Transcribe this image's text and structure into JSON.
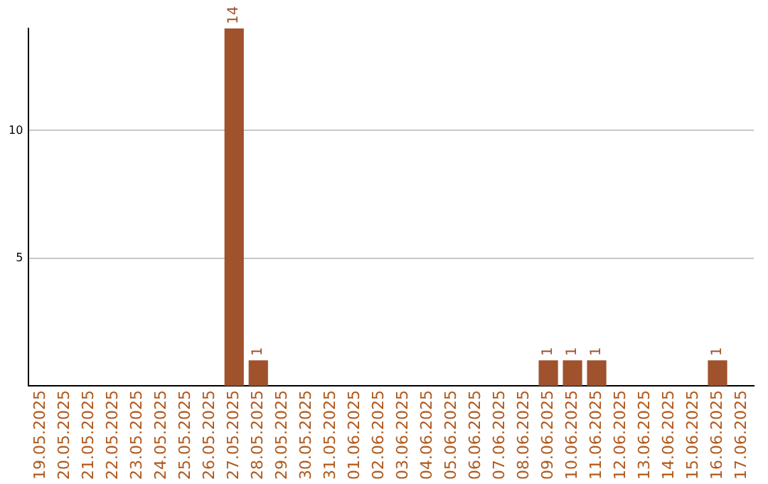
{
  "chart_data": {
    "type": "bar",
    "categories": [
      "19.05.2025",
      "20.05.2025",
      "21.05.2025",
      "22.05.2025",
      "23.05.2025",
      "24.05.2025",
      "25.05.2025",
      "26.05.2025",
      "27.05.2025",
      "28.05.2025",
      "29.05.2025",
      "30.05.2025",
      "31.05.2025",
      "01.06.2025",
      "02.06.2025",
      "03.06.2025",
      "04.06.2025",
      "05.06.2025",
      "06.06.2025",
      "07.06.2025",
      "08.06.2025",
      "09.06.2025",
      "10.06.2025",
      "11.06.2025",
      "12.06.2025",
      "13.06.2025",
      "14.06.2025",
      "15.06.2025",
      "16.06.2025",
      "17.06.2025"
    ],
    "values": [
      0,
      0,
      0,
      0,
      0,
      0,
      0,
      0,
      14,
      1,
      0,
      0,
      0,
      0,
      0,
      0,
      0,
      0,
      0,
      0,
      0,
      1,
      1,
      1,
      0,
      0,
      0,
      0,
      1,
      0
    ],
    "value_labels": [
      null,
      null,
      null,
      null,
      null,
      null,
      null,
      null,
      "14",
      "1",
      null,
      null,
      null,
      null,
      null,
      null,
      null,
      null,
      null,
      null,
      null,
      "1",
      "1",
      "1",
      null,
      null,
      null,
      null,
      "1",
      null
    ],
    "color": "#a0522d",
    "ylim": [
      0,
      14
    ],
    "yticks": [
      5,
      10
    ],
    "grid": "y",
    "legend": false
  }
}
